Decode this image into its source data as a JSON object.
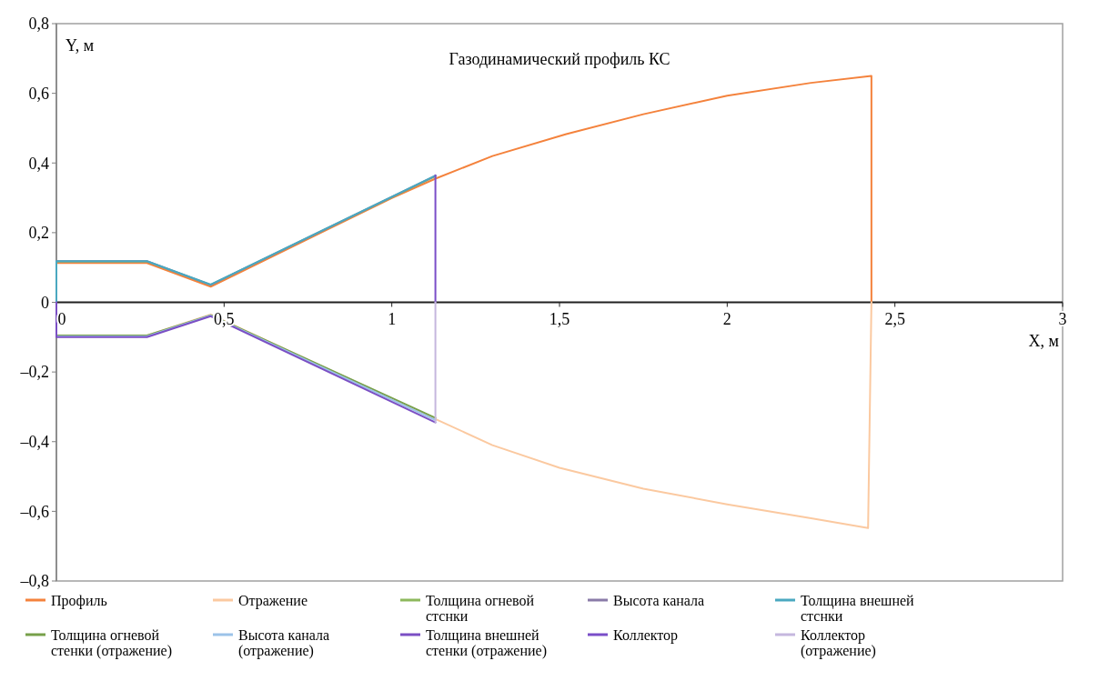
{
  "chart_data": {
    "type": "line",
    "title": "Газодинамический профиль КС",
    "xlabel": "X, м",
    "ylabel": "Y, м",
    "xlim": [
      0,
      3
    ],
    "ylim": [
      -0.8,
      0.8
    ],
    "xticks": [
      0,
      {
        "value": 0.5,
        "label": "0,5"
      },
      1,
      {
        "value": 1.5,
        "label": "1,5"
      },
      2,
      {
        "value": 2.5,
        "label": "2,5"
      },
      3
    ],
    "yticks": [
      {
        "value": -0.8,
        "label": "–0,8"
      },
      {
        "value": -0.6,
        "label": "–0,6"
      },
      {
        "value": -0.4,
        "label": "–0,4"
      },
      {
        "value": -0.2,
        "label": "–0,2"
      },
      0,
      {
        "value": 0.2,
        "label": "0,2"
      },
      {
        "value": 0.4,
        "label": "0,4"
      },
      {
        "value": 0.6,
        "label": "0,6"
      },
      {
        "value": 0.8,
        "label": "0,8"
      }
    ],
    "legend": "bottom",
    "series": [
      {
        "name": "Профиль",
        "color": "#f4823c",
        "x": [
          0,
          0.27,
          0.46,
          0.8,
          1.0,
          1.13,
          1.3,
          1.52,
          1.75,
          2.0,
          2.25,
          2.43,
          2.43
        ],
        "values": [
          0.113,
          0.113,
          0.045,
          0.205,
          0.299,
          0.355,
          0.42,
          0.483,
          0.54,
          0.593,
          0.63,
          0.65,
          0
        ]
      },
      {
        "name": "Отражение",
        "color": "#fbc9a0",
        "x": [
          0.27,
          0.46,
          1.13,
          1.3,
          1.5,
          1.75,
          2.0,
          2.25,
          2.42,
          2.43
        ],
        "values": [
          -0.095,
          -0.035,
          -0.335,
          -0.41,
          -0.475,
          -0.535,
          -0.58,
          -0.62,
          -0.648,
          0
        ]
      },
      {
        "name": "Толщина огневой стснки",
        "color": "#8db85c",
        "x": [
          0,
          0.27,
          0.46,
          1.13
        ],
        "values": [
          0.117,
          0.117,
          0.05,
          0.362
        ]
      },
      {
        "name": "Высота канала",
        "color": "#8a7ba8",
        "x": [
          0,
          0.27,
          0.46,
          1.13
        ],
        "values": [
          0.118,
          0.118,
          0.05,
          0.363
        ]
      },
      {
        "name": "Толщина внешней стснки",
        "color": "#4aa8c0",
        "x": [
          0,
          0,
          0.27,
          0.46,
          1.13
        ],
        "values": [
          0,
          0.118,
          0.118,
          0.051,
          0.364
        ]
      },
      {
        "name": "Толщина огневой стенки (отражение)",
        "color": "#77a04a",
        "x": [
          0,
          0.27,
          0.46,
          1.13
        ],
        "values": [
          -0.095,
          -0.095,
          -0.037,
          -0.332
        ]
      },
      {
        "name": "Высота канала (отражение)",
        "color": "#9cc3e8",
        "x": [
          0,
          0.27,
          0.46,
          1.13
        ],
        "values": [
          -0.098,
          -0.098,
          -0.038,
          -0.338
        ]
      },
      {
        "name": "Толщина внешней стенки (отражение)",
        "color": "#7b4fc4",
        "x": [
          0,
          0,
          0.27,
          0.46,
          1.13
        ],
        "values": [
          0,
          -0.1,
          -0.1,
          -0.04,
          -0.345
        ]
      },
      {
        "name": "Коллектор",
        "color": "#7a4ec8",
        "x": [
          1.13,
          1.13
        ],
        "values": [
          0,
          0.365
        ]
      },
      {
        "name": "Коллектор (отражение)",
        "color": "#c5b7de",
        "x": [
          1.13,
          1.13
        ],
        "values": [
          0,
          -0.345
        ]
      }
    ]
  }
}
